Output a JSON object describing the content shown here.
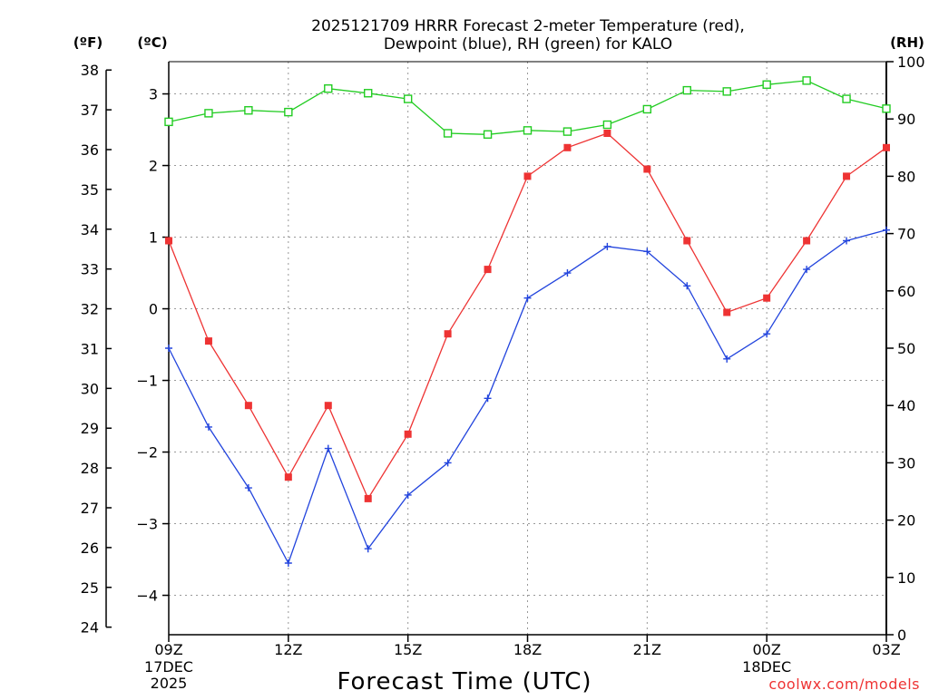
{
  "chart_data": {
    "type": "line",
    "title_line1": "2025121709 HRRR Forecast 2-meter Temperature (red),",
    "title_line2": "Dewpoint (blue), RH (green) for KALO",
    "xlabel": "Forecast Time (UTC)",
    "credit": "coolwx.com/models",
    "left_axis_f_label": "(ºF)",
    "left_axis_c_label": "(ºC)",
    "right_axis_label": "(RH)",
    "hours": [
      "09Z",
      "10Z",
      "11Z",
      "12Z",
      "13Z",
      "14Z",
      "15Z",
      "16Z",
      "17Z",
      "18Z",
      "19Z",
      "20Z",
      "21Z",
      "22Z",
      "23Z",
      "00Z",
      "01Z",
      "02Z",
      "03Z"
    ],
    "x_ticks": [
      {
        "index": 0,
        "label": "09Z",
        "sub1": "17DEC",
        "sub2": "2025"
      },
      {
        "index": 3,
        "label": "12Z"
      },
      {
        "index": 6,
        "label": "15Z"
      },
      {
        "index": 9,
        "label": "18Z"
      },
      {
        "index": 12,
        "label": "21Z"
      },
      {
        "index": 15,
        "label": "00Z",
        "sub1": "18DEC"
      },
      {
        "index": 18,
        "label": "03Z"
      }
    ],
    "celsius_ticks": [
      "3",
      "2",
      "1",
      "0",
      "−1",
      "−2",
      "−3",
      "−4"
    ],
    "celsius_tick_values": [
      3,
      2,
      1,
      0,
      -1,
      -2,
      -3,
      -4
    ],
    "fahrenheit_ticks": [
      "38",
      "37",
      "36",
      "35",
      "34",
      "33",
      "32",
      "31",
      "30",
      "29",
      "28",
      "27",
      "26",
      "25",
      "24"
    ],
    "fahrenheit_tick_values": [
      38,
      37,
      36,
      35,
      34,
      33,
      32,
      31,
      30,
      29,
      28,
      27,
      26,
      25,
      24
    ],
    "rh_ticks": [
      "100",
      "90",
      "80",
      "70",
      "60",
      "50",
      "40",
      "30",
      "20",
      "10",
      "0"
    ],
    "rh_tick_values": [
      100,
      90,
      80,
      70,
      60,
      50,
      40,
      30,
      20,
      10,
      0
    ],
    "ylim_celsius": [
      -4.55,
      3.45
    ],
    "ylim_rh": [
      0,
      100
    ],
    "grid": true,
    "series": [
      {
        "name": "Temperature",
        "color": "#ee3333",
        "marker": "filled-square",
        "axis": "celsius",
        "values": [
          0.95,
          -0.45,
          -1.35,
          -2.35,
          -1.35,
          -2.65,
          -1.75,
          -0.35,
          0.55,
          1.85,
          2.25,
          2.45,
          1.95,
          0.95,
          -0.05,
          0.15,
          0.95,
          1.85,
          2.25
        ]
      },
      {
        "name": "Dewpoint",
        "color": "#2244dd",
        "marker": "plus",
        "axis": "celsius",
        "values": [
          -0.55,
          -1.65,
          -2.5,
          -3.55,
          -1.95,
          -3.35,
          -2.6,
          -2.15,
          -1.25,
          0.15,
          0.5,
          0.87,
          0.8,
          0.32,
          -0.7,
          -0.35,
          0.55,
          0.95,
          1.1
        ]
      },
      {
        "name": "RH",
        "color": "#22cc22",
        "marker": "open-square",
        "axis": "rh",
        "values": [
          89.5,
          91.0,
          91.5,
          91.2,
          95.3,
          94.5,
          93.5,
          87.5,
          87.3,
          88.0,
          87.8,
          89.0,
          91.7,
          95.0,
          94.8,
          96.0,
          96.7,
          93.5,
          91.8
        ]
      }
    ]
  }
}
